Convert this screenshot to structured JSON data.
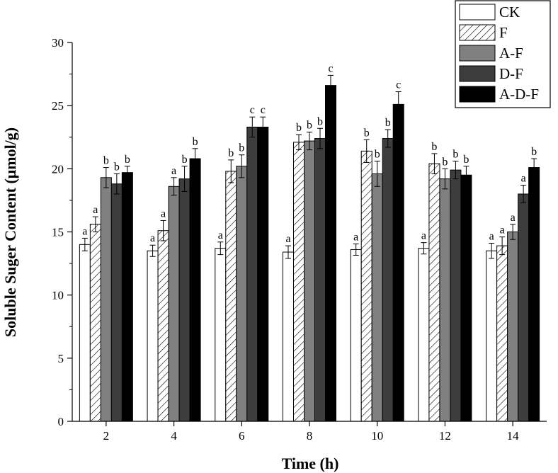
{
  "chart_data": {
    "type": "bar",
    "title": "",
    "xlabel": "Time (h)",
    "ylabel": "Soluble Suger Content (μmol/g)",
    "ylim": [
      0,
      30
    ],
    "yticks": [
      "0",
      "5",
      "10",
      "15",
      "20",
      "25",
      "30"
    ],
    "categories": [
      "2",
      "4",
      "6",
      "8",
      "10",
      "12",
      "14"
    ],
    "legend_position": "top-right",
    "series": [
      {
        "name": "CK",
        "fill": "#ffffff",
        "pattern": "none",
        "values": [
          14.0,
          13.5,
          13.7,
          13.4,
          13.6,
          13.7,
          13.5
        ],
        "errors": [
          0.5,
          0.45,
          0.5,
          0.5,
          0.45,
          0.45,
          0.6
        ],
        "letters": [
          "a",
          "a",
          "a",
          "a",
          "a",
          "a",
          "a"
        ]
      },
      {
        "name": "F",
        "fill": "#ffffff",
        "pattern": "hatch",
        "values": [
          15.6,
          15.1,
          19.8,
          22.1,
          21.4,
          20.4,
          13.9
        ],
        "errors": [
          0.6,
          0.8,
          0.9,
          0.6,
          0.9,
          0.8,
          0.7
        ],
        "letters": [
          "a",
          "a",
          "b",
          "b",
          "b",
          "b",
          "a"
        ]
      },
      {
        "name": "A-F",
        "fill": "#808080",
        "pattern": "none",
        "values": [
          19.3,
          18.6,
          20.2,
          22.2,
          19.6,
          19.2,
          15.0
        ],
        "errors": [
          0.8,
          0.7,
          0.9,
          0.7,
          1.0,
          0.8,
          0.6
        ],
        "letters": [
          "b",
          "a",
          "b",
          "b",
          "b",
          "b",
          "a"
        ]
      },
      {
        "name": "D-F",
        "fill": "#3d3d3d",
        "pattern": "none",
        "values": [
          18.8,
          19.2,
          23.3,
          22.4,
          22.4,
          19.9,
          18.0
        ],
        "errors": [
          0.8,
          1.0,
          0.8,
          0.8,
          0.7,
          0.7,
          0.7
        ],
        "letters": [
          "b",
          "b",
          "c",
          "b",
          "b",
          "b",
          "a"
        ]
      },
      {
        "name": "A-D-F",
        "fill": "#000000",
        "pattern": "none",
        "values": [
          19.7,
          20.8,
          23.3,
          26.6,
          25.1,
          19.5,
          20.1
        ],
        "errors": [
          0.5,
          0.8,
          0.8,
          0.8,
          1.0,
          0.7,
          0.7
        ],
        "letters": [
          "b",
          "b",
          "c",
          "c",
          "c",
          "b",
          "b"
        ]
      }
    ]
  }
}
